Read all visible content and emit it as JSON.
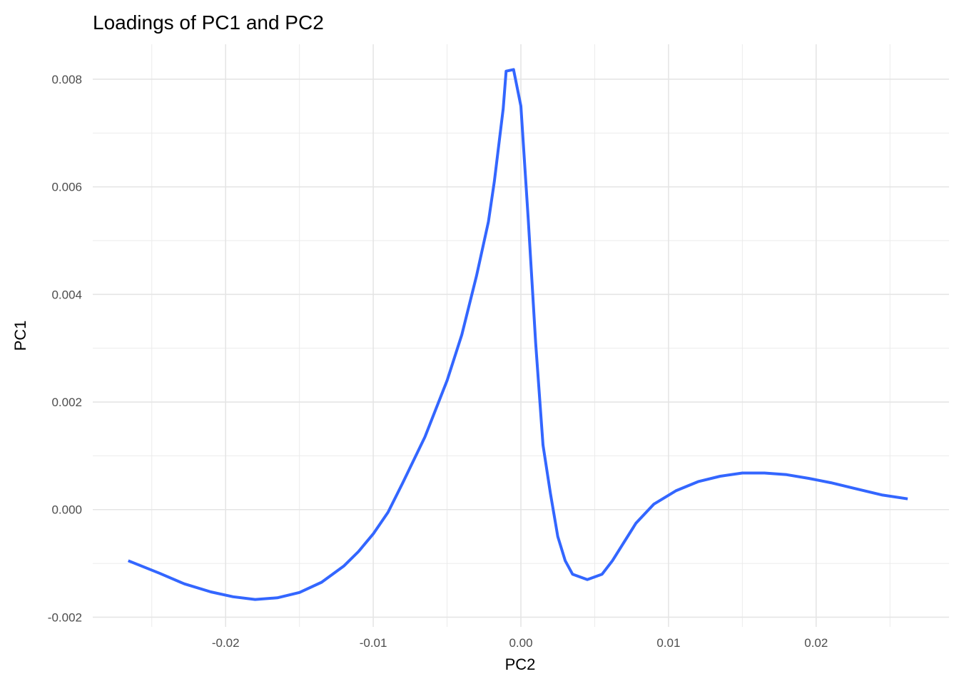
{
  "chart_data": {
    "type": "line",
    "title": "Loadings of PC1 and PC2",
    "xlabel": "PC2",
    "ylabel": "PC1",
    "xlim": [
      -0.029,
      0.029
    ],
    "ylim": [
      -0.00218,
      0.00865
    ],
    "x_ticks": [
      -0.02,
      -0.01,
      0.0,
      0.01,
      0.02
    ],
    "x_tick_labels": [
      "-0.02",
      "-0.01",
      "0.00",
      "0.01",
      "0.02"
    ],
    "y_ticks": [
      -0.002,
      0.0,
      0.002,
      0.004,
      0.006,
      0.008
    ],
    "y_tick_labels": [
      "-0.002",
      "0.000",
      "0.002",
      "0.004",
      "0.006",
      "0.008"
    ],
    "grid": true,
    "series": [
      {
        "color": "#3366ff",
        "x": [
          -0.0266,
          -0.0245,
          -0.0228,
          -0.021,
          -0.0195,
          -0.018,
          -0.0165,
          -0.015,
          -0.0135,
          -0.012,
          -0.011,
          -0.01,
          -0.009,
          -0.008,
          -0.0065,
          -0.005,
          -0.004,
          -0.003,
          -0.0022,
          -0.0018,
          -0.0012,
          -0.001,
          -0.0005,
          0.0,
          0.0005,
          0.001,
          0.0015,
          0.002,
          0.0025,
          0.003,
          0.0035,
          0.0045,
          0.0055,
          0.0062,
          0.007,
          0.0078,
          0.009,
          0.0105,
          0.012,
          0.0135,
          0.015,
          0.0165,
          0.018,
          0.0195,
          0.021,
          0.0225,
          0.0245,
          0.0262
        ],
        "y": [
          -0.00095,
          -0.00118,
          -0.00138,
          -0.00153,
          -0.00162,
          -0.00167,
          -0.00164,
          -0.00154,
          -0.00135,
          -0.00105,
          -0.00078,
          -0.00045,
          -5e-05,
          0.0005,
          0.00135,
          0.0024,
          0.00325,
          0.00435,
          0.00535,
          0.0061,
          0.00745,
          0.00815,
          0.00818,
          0.0075,
          0.0054,
          0.0031,
          0.0012,
          0.0003,
          -0.0005,
          -0.00095,
          -0.0012,
          -0.0013,
          -0.0012,
          -0.00095,
          -0.0006,
          -0.00025,
          0.0001,
          0.00035,
          0.00052,
          0.00062,
          0.00068,
          0.00068,
          0.00065,
          0.00058,
          0.0005,
          0.0004,
          0.00027,
          0.0002
        ]
      }
    ]
  }
}
